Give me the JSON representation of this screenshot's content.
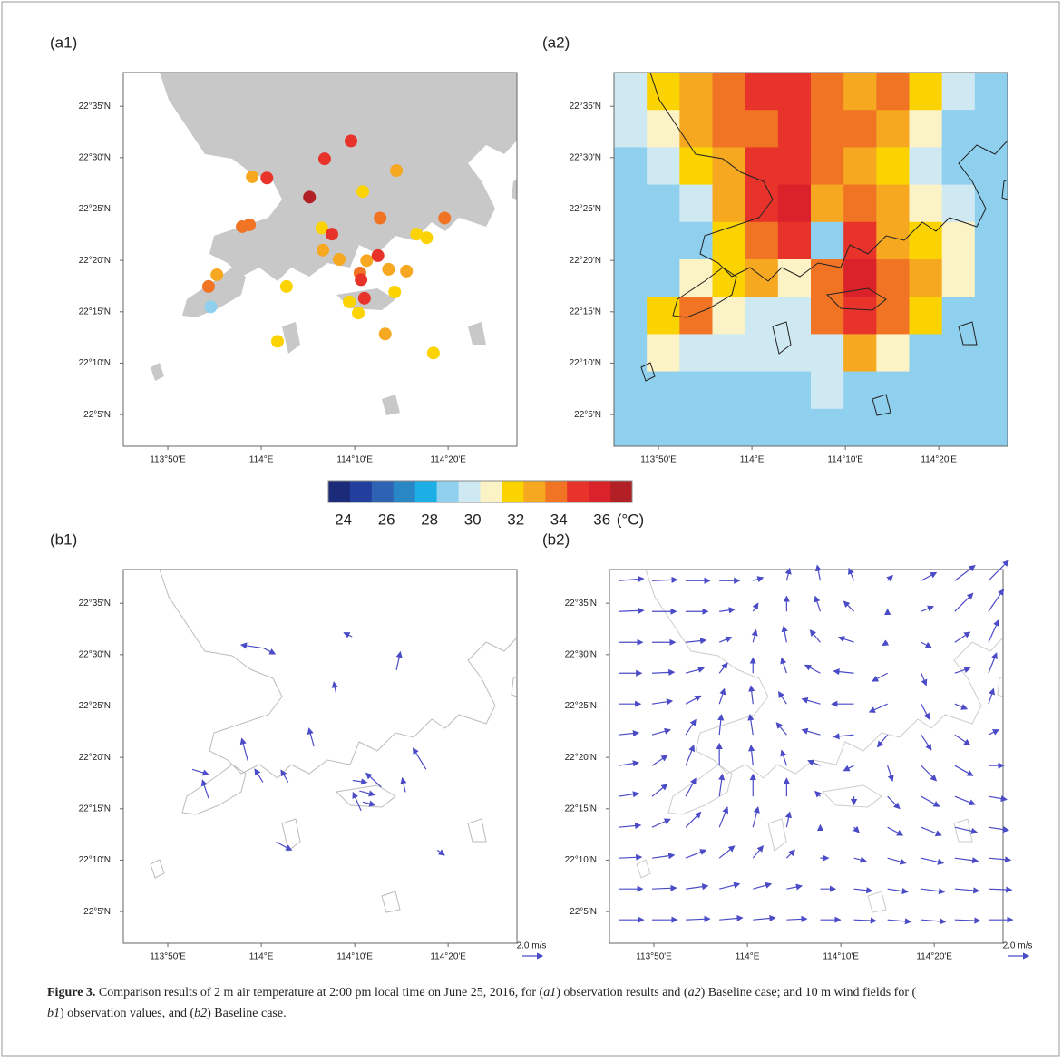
{
  "panels": [
    {
      "label": "(a1)"
    },
    {
      "label": "(a2)"
    },
    {
      "label": "(b1)"
    },
    {
      "label": "(b2)"
    }
  ],
  "map": {
    "xlim": [
      113.754,
      114.456
    ],
    "ylim": [
      22.032,
      22.638
    ],
    "xticks": [
      {
        "value": 113.8333,
        "label": "113°50'E"
      },
      {
        "value": 114,
        "label": "114°E"
      },
      {
        "value": 114.1667,
        "label": "114°10'E"
      },
      {
        "value": 114.3333,
        "label": "114°20'E"
      }
    ],
    "yticks": [
      {
        "value": 22.5833,
        "label": "22°35'N"
      },
      {
        "value": 22.5,
        "label": "22°30'N"
      },
      {
        "value": 22.4167,
        "label": "22°25'N"
      },
      {
        "value": 22.3333,
        "label": "22°20'N"
      },
      {
        "value": 22.25,
        "label": "22°15'N"
      },
      {
        "value": 22.1667,
        "label": "22°10'N"
      },
      {
        "value": 22.0833,
        "label": "22°5'N"
      }
    ]
  },
  "colorbar": {
    "clim": [
      23.3,
      37.4
    ],
    "ticks": [
      24,
      26,
      28,
      30,
      32,
      34,
      36
    ],
    "unit": "(°C)",
    "colors": [
      "#1c2a7a",
      "#233f9e",
      "#2e63b3",
      "#2a87c6",
      "#1cafe6",
      "#8fd0ef",
      "#cfe9f3",
      "#fbf2c6",
      "#fbd300",
      "#f6a821",
      "#f07424",
      "#e8332a",
      "#d9222a",
      "#b21f25"
    ]
  },
  "stations": {
    "lon": [
      114.113,
      114.16,
      114.01,
      113.984,
      114.241,
      114.086,
      114.181,
      114.212,
      114.327,
      114.277,
      114.295,
      113.966,
      113.979,
      114.108,
      114.126,
      114.11,
      114.139,
      114.188,
      114.208,
      114.176,
      114.178,
      114.227,
      114.259,
      114.184,
      114.238,
      113.921,
      113.906,
      114.045,
      113.91,
      114.157,
      114.173,
      114.221,
      114.029,
      114.307
    ],
    "lat": [
      22.498,
      22.527,
      22.467,
      22.469,
      22.479,
      22.436,
      22.445,
      22.402,
      22.402,
      22.376,
      22.37,
      22.388,
      22.391,
      22.386,
      22.376,
      22.35,
      22.335,
      22.333,
      22.341,
      22.313,
      22.302,
      22.319,
      22.316,
      22.272,
      22.282,
      22.31,
      22.291,
      22.291,
      22.258,
      22.266,
      22.248,
      22.214,
      22.202,
      22.183
    ],
    "temp": [
      35,
      35,
      35,
      33,
      33,
      36.5,
      32,
      34,
      34,
      32,
      32,
      34,
      34,
      32,
      35,
      33,
      33,
      33,
      35,
      34,
      35,
      33,
      33,
      35,
      32,
      33,
      34,
      32,
      29,
      32,
      32,
      33,
      32,
      32
    ]
  },
  "baseline_temp": [
    [
      30,
      32,
      33,
      34,
      35,
      35,
      34,
      33,
      34,
      32,
      30,
      29
    ],
    [
      30,
      31,
      33,
      34,
      34,
      35,
      34,
      34,
      33,
      31,
      29,
      29
    ],
    [
      29,
      30,
      32,
      33,
      35,
      35,
      34,
      33,
      32,
      30,
      29,
      29
    ],
    [
      29,
      29,
      30,
      33,
      35,
      36,
      33,
      34,
      33,
      31,
      30,
      29
    ],
    [
      29,
      29,
      29,
      32,
      34,
      35,
      29,
      35,
      33,
      32,
      31,
      29
    ],
    [
      29,
      29,
      31,
      32,
      33,
      31,
      34,
      36,
      34,
      33,
      31,
      29
    ],
    [
      29,
      32,
      34,
      31,
      30,
      30,
      34,
      35,
      34,
      32,
      29,
      29
    ],
    [
      29,
      31,
      30,
      30,
      30,
      30,
      30,
      33,
      31,
      29,
      29,
      29
    ],
    [
      29,
      29,
      29,
      29,
      29,
      29,
      30,
      29,
      29,
      29,
      29,
      29
    ],
    [
      29,
      29,
      29,
      29,
      29,
      29,
      29,
      29,
      29,
      29,
      29,
      29
    ]
  ],
  "wind_obs": {
    "lon": [
      114.162,
      114.0,
      114.003,
      114.133,
      114.241,
      113.976,
      114.094,
      114.294,
      113.877,
      113.906,
      114.003,
      114.048,
      114.163,
      114.175,
      114.181,
      114.214,
      114.257,
      114.178,
      114.027,
      114.314
    ],
    "lat": [
      22.529,
      22.511,
      22.511,
      22.439,
      22.475,
      22.328,
      22.351,
      22.314,
      22.314,
      22.267,
      22.293,
      22.293,
      22.296,
      22.279,
      22.261,
      22.285,
      22.277,
      22.247,
      22.196,
      22.183
    ],
    "u": [
      -0.8,
      -2,
      1.2,
      -0.2,
      0.4,
      -0.6,
      -0.5,
      -1.3,
      1.6,
      -0.6,
      -0.8,
      -0.7,
      1.4,
      1.5,
      1.2,
      -1.5,
      -0.3,
      -0.8,
      1.5,
      0.7
    ],
    "v": [
      0.4,
      0.3,
      -0.6,
      1,
      1.8,
      2.2,
      1.8,
      2.1,
      -0.5,
      1.8,
      1.3,
      1.2,
      -0.2,
      -0.4,
      -0.3,
      1.4,
      1.4,
      1.8,
      -0.8,
      -0.5
    ]
  },
  "wind_model": {
    "lons": [
      113.77,
      113.83,
      113.89,
      113.95,
      114.01,
      114.07,
      114.13,
      114.19,
      114.25,
      114.31,
      114.37,
      114.43
    ],
    "lats": [
      22.62,
      22.57,
      22.52,
      22.47,
      22.42,
      22.37,
      22.32,
      22.27,
      22.22,
      22.17,
      22.12,
      22.07
    ],
    "u": [
      [
        2.5,
        2.5,
        2.4,
        2.0,
        1.0,
        0.3,
        -0.3,
        -0.5,
        0.5,
        1.5,
        2.0,
        2.0
      ],
      [
        2.5,
        2.4,
        2.2,
        1.5,
        0.5,
        0,
        -0.5,
        -1.0,
        0,
        1.2,
        1.8,
        1.5
      ],
      [
        2.4,
        2.3,
        2.0,
        1.2,
        0.3,
        -0.3,
        -1.0,
        -1.5,
        -0.5,
        1.0,
        1.5,
        1.0
      ],
      [
        2.3,
        2.2,
        1.8,
        0.8,
        0,
        -0.5,
        -1.5,
        -2.0,
        -1.5,
        0.5,
        1.5,
        0.8
      ],
      [
        2.2,
        2.0,
        1.5,
        0.5,
        -0.2,
        -0.8,
        -1.8,
        -2.2,
        -1.8,
        0.8,
        1.2,
        0.5
      ],
      [
        2.0,
        1.8,
        1.0,
        0.2,
        -0.3,
        -1.0,
        -1.8,
        -2.0,
        -1.0,
        1.0,
        1.5,
        1.0
      ],
      [
        2.0,
        1.5,
        0.8,
        0,
        -0.2,
        -0.5,
        -1.2,
        -1.0,
        0.5,
        1.5,
        1.8,
        1.5
      ],
      [
        2.0,
        1.5,
        1.0,
        0.3,
        0,
        0,
        -0.5,
        0,
        1.2,
        1.8,
        2.0,
        1.8
      ],
      [
        2.2,
        1.8,
        1.5,
        0.8,
        0.5,
        0.3,
        0,
        0.5,
        1.5,
        2.0,
        2.2,
        2.0
      ],
      [
        2.3,
        2.2,
        2.0,
        1.5,
        1.0,
        0.8,
        0.8,
        1.2,
        1.8,
        2.2,
        2.3,
        2.2
      ],
      [
        2.4,
        2.4,
        2.2,
        2.0,
        1.8,
        1.5,
        1.5,
        1.8,
        2.0,
        2.3,
        2.4,
        2.3
      ],
      [
        2.5,
        2.5,
        2.4,
        2.3,
        2.2,
        2.0,
        2.0,
        2.2,
        2.3,
        2.4,
        2.5,
        2.4
      ]
    ],
    "v": [
      [
        0.2,
        0.1,
        0,
        0,
        0.3,
        1.2,
        1.5,
        1.2,
        0.5,
        0.8,
        1.5,
        2.0
      ],
      [
        0.1,
        0,
        0,
        0.2,
        0.8,
        1.5,
        1.5,
        1.0,
        0.2,
        0.5,
        1.8,
        2.2
      ],
      [
        0,
        0,
        0.2,
        0.5,
        1.2,
        1.6,
        1.2,
        0.5,
        -0.3,
        -0.5,
        1.0,
        2.2
      ],
      [
        0,
        0.1,
        0.5,
        1.0,
        1.5,
        1.5,
        0.8,
        0.2,
        -0.8,
        -1.2,
        0.5,
        2.0
      ],
      [
        0,
        0.3,
        0.8,
        1.5,
        1.8,
        1.2,
        0.5,
        0,
        -0.8,
        -1.5,
        -0.5,
        1.5
      ],
      [
        0.2,
        0.5,
        1.5,
        2.0,
        2.0,
        1.2,
        0.5,
        -0.2,
        -1.2,
        -1.5,
        -1.0,
        0.5
      ],
      [
        0.3,
        1.0,
        2.0,
        2.2,
        2.0,
        1.5,
        0.5,
        -0.5,
        -1.5,
        -1.5,
        -1.0,
        0
      ],
      [
        0.3,
        1.2,
        1.8,
        2.2,
        2.2,
        1.8,
        0.5,
        -0.8,
        -1.2,
        -1.0,
        -0.8,
        -0.3
      ],
      [
        0.2,
        0.8,
        1.5,
        2.0,
        2.0,
        1.5,
        0.2,
        -0.5,
        -0.8,
        -0.8,
        -0.5,
        -0.3
      ],
      [
        0.1,
        0.3,
        0.8,
        1.2,
        1.2,
        0.8,
        0,
        -0.3,
        -0.5,
        -0.5,
        -0.3,
        -0.2
      ],
      [
        0,
        0.1,
        0.3,
        0.5,
        0.5,
        0.3,
        0,
        -0.2,
        -0.3,
        -0.3,
        -0.2,
        -0.1
      ],
      [
        0,
        0,
        0.1,
        0.2,
        0.2,
        0.1,
        0,
        -0.1,
        -0.2,
        -0.2,
        -0.1,
        0
      ]
    ]
  },
  "wind_key": {
    "label": "2.0 m/s",
    "value": 2.0
  },
  "caption": {
    "label": "Figure 3.",
    "parts": [
      " Comparison results of 2 m air temperature at 2:00 pm local time on June 25, 2016, for (",
      "a1",
      ") observation results and (",
      "a2",
      ") Baseline case; and 10 m wind fields for (",
      "b1",
      ") observation values, and (",
      "b2",
      ") Baseline case."
    ]
  }
}
